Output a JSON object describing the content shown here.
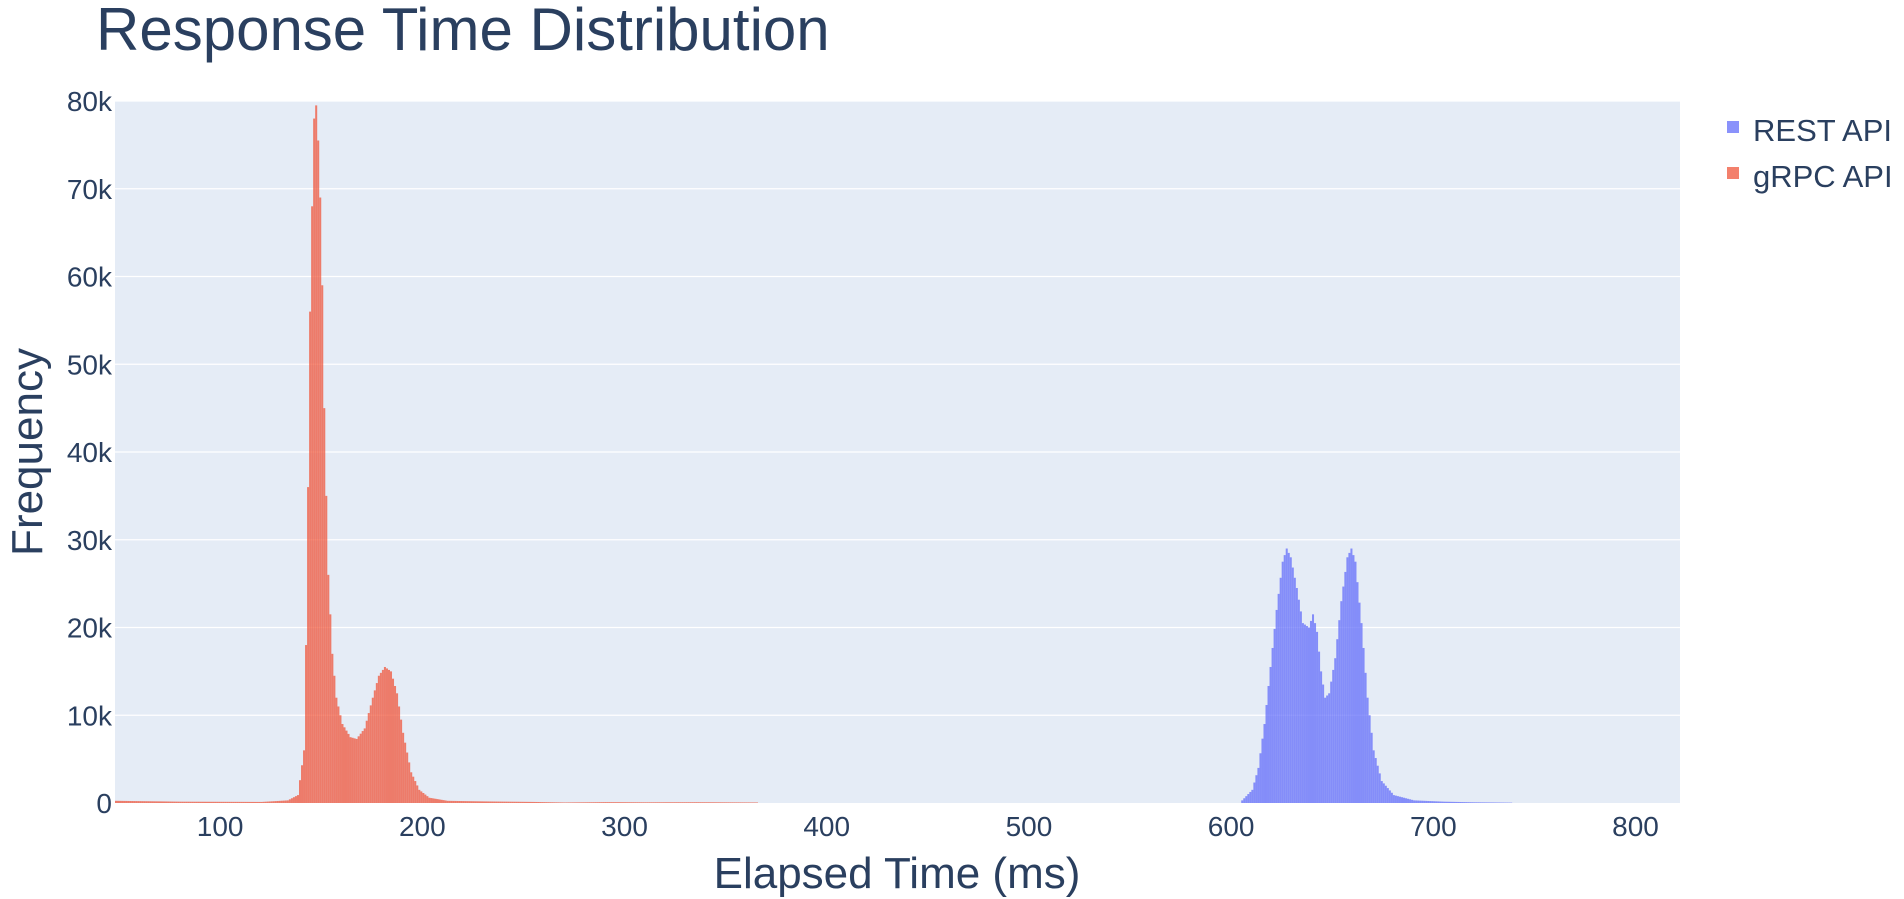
{
  "chart_data": {
    "type": "bar",
    "subtype": "histogram-overlay",
    "title": "Response Time Distribution",
    "xlabel": "Elapsed Time (ms)",
    "ylabel": "Frequency",
    "xlim": [
      48,
      822
    ],
    "ylim": [
      0,
      80000
    ],
    "x_ticks": [
      100,
      200,
      300,
      400,
      500,
      600,
      700,
      800
    ],
    "x_tick_labels": [
      "100",
      "200",
      "300",
      "400",
      "500",
      "600",
      "700",
      "800"
    ],
    "y_ticks": [
      0,
      10000,
      20000,
      30000,
      40000,
      50000,
      60000,
      70000,
      80000
    ],
    "y_tick_labels": [
      "0",
      "10k",
      "20k",
      "30k",
      "40k",
      "50k",
      "60k",
      "70k",
      "80k"
    ],
    "grid": true,
    "legend_position": "top-right",
    "plot_background": "#e5ecf6",
    "bin_width_ms": 1,
    "series": [
      {
        "name": "REST API",
        "color": "#636efa",
        "bins": [
          {
            "x": 605,
            "y": 300
          },
          {
            "x": 610,
            "y": 1500
          },
          {
            "x": 613,
            "y": 4000
          },
          {
            "x": 616,
            "y": 9000
          },
          {
            "x": 619,
            "y": 15500
          },
          {
            "x": 622,
            "y": 22000
          },
          {
            "x": 625,
            "y": 27500
          },
          {
            "x": 627,
            "y": 29000
          },
          {
            "x": 629,
            "y": 28000
          },
          {
            "x": 632,
            "y": 24500
          },
          {
            "x": 635,
            "y": 20500
          },
          {
            "x": 638,
            "y": 20000
          },
          {
            "x": 640,
            "y": 21500
          },
          {
            "x": 642,
            "y": 19500
          },
          {
            "x": 644,
            "y": 15000
          },
          {
            "x": 646,
            "y": 12000
          },
          {
            "x": 648,
            "y": 12500
          },
          {
            "x": 651,
            "y": 16500
          },
          {
            "x": 654,
            "y": 23000
          },
          {
            "x": 657,
            "y": 28000
          },
          {
            "x": 659,
            "y": 29000
          },
          {
            "x": 661,
            "y": 27500
          },
          {
            "x": 664,
            "y": 20500
          },
          {
            "x": 667,
            "y": 12000
          },
          {
            "x": 670,
            "y": 6000
          },
          {
            "x": 674,
            "y": 2500
          },
          {
            "x": 680,
            "y": 900
          },
          {
            "x": 690,
            "y": 300
          },
          {
            "x": 705,
            "y": 150
          },
          {
            "x": 720,
            "y": 80
          },
          {
            "x": 738,
            "y": 40
          },
          {
            "x": 739,
            "y": 0
          }
        ]
      },
      {
        "name": "gRPC API",
        "color": "#ef553b",
        "bins": [
          {
            "x": 48,
            "y": 250
          },
          {
            "x": 80,
            "y": 150
          },
          {
            "x": 120,
            "y": 120
          },
          {
            "x": 133,
            "y": 300
          },
          {
            "x": 138,
            "y": 900
          },
          {
            "x": 141,
            "y": 6000
          },
          {
            "x": 142,
            "y": 18000
          },
          {
            "x": 143,
            "y": 36000
          },
          {
            "x": 144,
            "y": 56000
          },
          {
            "x": 145,
            "y": 68000
          },
          {
            "x": 146,
            "y": 78000
          },
          {
            "x": 147,
            "y": 79500
          },
          {
            "x": 148,
            "y": 75500
          },
          {
            "x": 149,
            "y": 69000
          },
          {
            "x": 150,
            "y": 59000
          },
          {
            "x": 151,
            "y": 45000
          },
          {
            "x": 152,
            "y": 35000
          },
          {
            "x": 153,
            "y": 26000
          },
          {
            "x": 155,
            "y": 17000
          },
          {
            "x": 157,
            "y": 12000
          },
          {
            "x": 160,
            "y": 9000
          },
          {
            "x": 164,
            "y": 7500
          },
          {
            "x": 167,
            "y": 7300
          },
          {
            "x": 171,
            "y": 8500
          },
          {
            "x": 175,
            "y": 12000
          },
          {
            "x": 178,
            "y": 14500
          },
          {
            "x": 181,
            "y": 15500
          },
          {
            "x": 184,
            "y": 15000
          },
          {
            "x": 187,
            "y": 12500
          },
          {
            "x": 190,
            "y": 8000
          },
          {
            "x": 194,
            "y": 3500
          },
          {
            "x": 198,
            "y": 1500
          },
          {
            "x": 203,
            "y": 600
          },
          {
            "x": 212,
            "y": 250
          },
          {
            "x": 230,
            "y": 180
          },
          {
            "x": 255,
            "y": 120
          },
          {
            "x": 270,
            "y": 60
          },
          {
            "x": 290,
            "y": 100
          },
          {
            "x": 310,
            "y": 80
          },
          {
            "x": 335,
            "y": 90
          },
          {
            "x": 365,
            "y": 60
          },
          {
            "x": 366,
            "y": 0
          }
        ]
      }
    ]
  }
}
